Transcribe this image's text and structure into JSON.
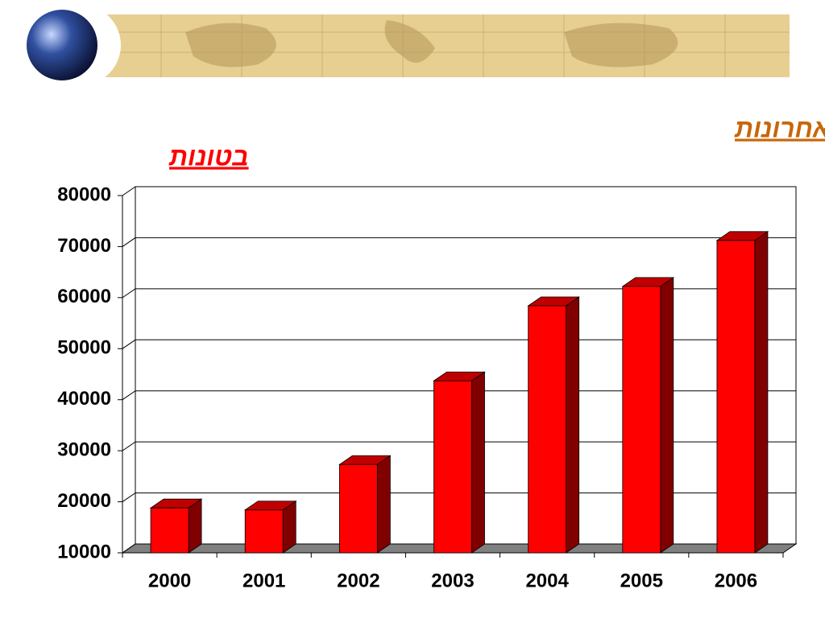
{
  "chart_data": {
    "type": "bar3d",
    "title": "יבוא פלפל לרוסיה בשנים האחרונות",
    "y_label": "בטונות",
    "categories": [
      "2000",
      "2001",
      "2002",
      "2003",
      "2004",
      "2005",
      "2006"
    ],
    "values": [
      18800,
      18400,
      27300,
      43700,
      58400,
      62200,
      71200
    ],
    "color": "#ff0000",
    "ylim": [
      10000,
      80000
    ],
    "yticks": [
      10000,
      20000,
      30000,
      40000,
      50000,
      60000,
      70000,
      80000
    ],
    "grid": true
  }
}
